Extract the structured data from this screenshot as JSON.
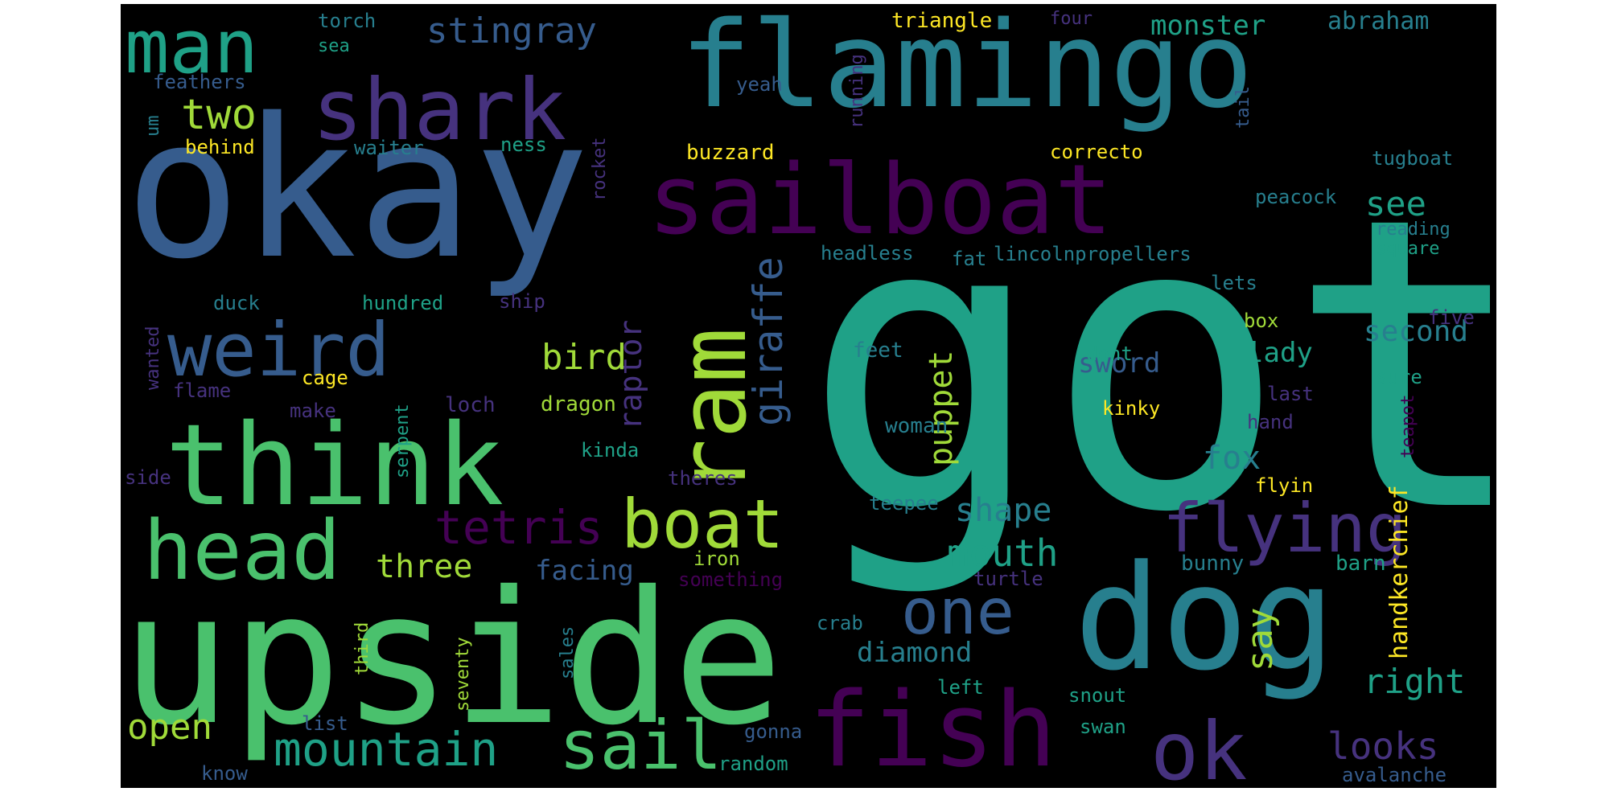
{
  "canvas": {
    "background": "#000000"
  },
  "palette": {
    "purple": "#440154",
    "indigo": "#46327e",
    "blue": "#365c8d",
    "steel": "#277f8e",
    "teal": "#1fa187",
    "green": "#4ac16d",
    "lime": "#a0da39",
    "yellow": "#fde725"
  },
  "words": [
    {
      "text": "got",
      "color": "teal"
    },
    {
      "text": "okay",
      "color": "blue"
    },
    {
      "text": "upside",
      "color": "green"
    },
    {
      "text": "flamingo",
      "color": "steel"
    },
    {
      "text": "dog",
      "color": "steel"
    },
    {
      "text": "think",
      "color": "green"
    },
    {
      "text": "sailboat",
      "color": "purple"
    },
    {
      "text": "fish",
      "color": "purple"
    },
    {
      "text": "shark",
      "color": "indigo"
    },
    {
      "text": "head",
      "color": "green"
    },
    {
      "text": "man",
      "color": "teal"
    },
    {
      "text": "weird",
      "color": "blue"
    },
    {
      "text": "ram",
      "color": "lime"
    },
    {
      "text": "ok",
      "color": "indigo"
    },
    {
      "text": "boat",
      "color": "lime"
    },
    {
      "text": "flying",
      "color": "indigo"
    },
    {
      "text": "sail",
      "color": "green"
    },
    {
      "text": "one",
      "color": "blue"
    },
    {
      "text": "mountain",
      "color": "teal"
    },
    {
      "text": "giraffe",
      "color": "blue"
    },
    {
      "text": "tetris",
      "color": "purple"
    },
    {
      "text": "two",
      "color": "lime"
    },
    {
      "text": "stingray",
      "color": "blue"
    },
    {
      "text": "raptor",
      "color": "indigo"
    },
    {
      "text": "bird",
      "color": "lime"
    },
    {
      "text": "open",
      "color": "lime"
    },
    {
      "text": "three",
      "color": "lime"
    },
    {
      "text": "mouth",
      "color": "teal"
    },
    {
      "text": "puppet",
      "color": "lime"
    },
    {
      "text": "shape",
      "color": "steel"
    },
    {
      "text": "say",
      "color": "lime"
    },
    {
      "text": "looks",
      "color": "indigo"
    },
    {
      "text": "right",
      "color": "teal"
    },
    {
      "text": "fox",
      "color": "steel"
    },
    {
      "text": "see",
      "color": "teal"
    },
    {
      "text": "second",
      "color": "steel"
    },
    {
      "text": "diamond",
      "color": "steel"
    },
    {
      "text": "monster",
      "color": "teal"
    },
    {
      "text": "facing",
      "color": "blue"
    },
    {
      "text": "handkerchief",
      "color": "yellow"
    },
    {
      "text": "sword",
      "color": "blue"
    },
    {
      "text": "lady",
      "color": "teal"
    },
    {
      "text": "abraham",
      "color": "steel"
    },
    {
      "text": "triangle",
      "color": "yellow"
    },
    {
      "text": "buzzard",
      "color": "yellow"
    },
    {
      "text": "tugboat",
      "color": "steel"
    },
    {
      "text": "peacock",
      "color": "steel"
    },
    {
      "text": "reading",
      "color": "steel"
    },
    {
      "text": "square",
      "color": "teal"
    },
    {
      "text": "lincolnpropellers",
      "color": "steel"
    },
    {
      "text": "headless",
      "color": "steel"
    },
    {
      "text": "fat",
      "color": "steel"
    },
    {
      "text": "lets",
      "color": "steel"
    },
    {
      "text": "box",
      "color": "lime"
    },
    {
      "text": "five",
      "color": "indigo"
    },
    {
      "text": "feet",
      "color": "steel"
    },
    {
      "text": "dont",
      "color": "teal"
    },
    {
      "text": "kinky",
      "color": "yellow"
    },
    {
      "text": "last",
      "color": "indigo"
    },
    {
      "text": "sure",
      "color": "teal"
    },
    {
      "text": "hand",
      "color": "indigo"
    },
    {
      "text": "teapot",
      "color": "purple"
    },
    {
      "text": "woman",
      "color": "steel"
    },
    {
      "text": "flyin",
      "color": "yellow"
    },
    {
      "text": "teepee",
      "color": "steel"
    },
    {
      "text": "bunny",
      "color": "steel"
    },
    {
      "text": "barn",
      "color": "teal"
    },
    {
      "text": "turtle",
      "color": "indigo"
    },
    {
      "text": "something",
      "color": "purple"
    },
    {
      "text": "iron",
      "color": "lime"
    },
    {
      "text": "theres",
      "color": "indigo"
    },
    {
      "text": "kinda",
      "color": "teal"
    },
    {
      "text": "dragon",
      "color": "lime"
    },
    {
      "text": "loch",
      "color": "indigo"
    },
    {
      "text": "cage",
      "color": "yellow"
    },
    {
      "text": "make",
      "color": "indigo"
    },
    {
      "text": "flame",
      "color": "indigo"
    },
    {
      "text": "duck",
      "color": "steel"
    },
    {
      "text": "hundred",
      "color": "teal"
    },
    {
      "text": "ship",
      "color": "indigo"
    },
    {
      "text": "torch",
      "color": "steel"
    },
    {
      "text": "sea",
      "color": "teal"
    },
    {
      "text": "feathers",
      "color": "blue"
    },
    {
      "text": "behind",
      "color": "yellow"
    },
    {
      "text": "waiter",
      "color": "steel"
    },
    {
      "text": "ness",
      "color": "teal"
    },
    {
      "text": "yeah",
      "color": "blue"
    },
    {
      "text": "four",
      "color": "indigo"
    },
    {
      "text": "correcto",
      "color": "yellow"
    },
    {
      "text": "running",
      "color": "indigo"
    },
    {
      "text": "tail",
      "color": "blue"
    },
    {
      "text": "rocket",
      "color": "indigo"
    },
    {
      "text": "um",
      "color": "steel"
    },
    {
      "text": "wanted",
      "color": "indigo"
    },
    {
      "text": "side",
      "color": "indigo"
    },
    {
      "text": "serpent",
      "color": "teal"
    },
    {
      "text": "third",
      "color": "lime"
    },
    {
      "text": "seventy",
      "color": "lime"
    },
    {
      "text": "sales",
      "color": "steel"
    },
    {
      "text": "crab",
      "color": "steel"
    },
    {
      "text": "left",
      "color": "teal"
    },
    {
      "text": "snout",
      "color": "teal"
    },
    {
      "text": "swan",
      "color": "teal"
    },
    {
      "text": "list",
      "color": "blue"
    },
    {
      "text": "gonna",
      "color": "blue"
    },
    {
      "text": "random",
      "color": "teal"
    },
    {
      "text": "know",
      "color": "blue"
    },
    {
      "text": "avalanche",
      "color": "blue"
    }
  ]
}
